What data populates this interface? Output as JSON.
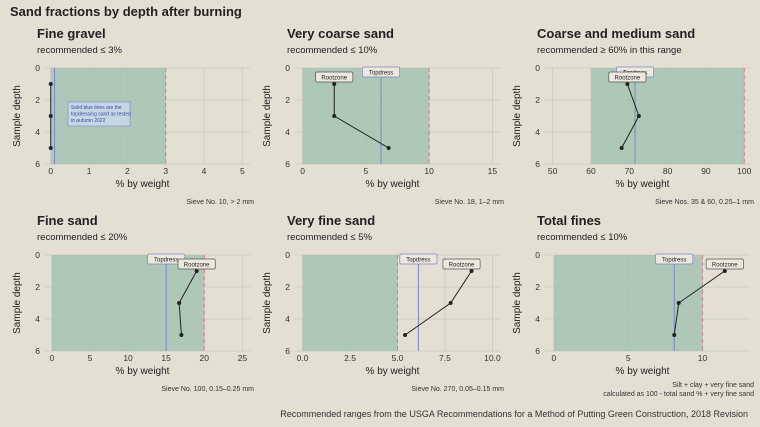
{
  "title": "Sand fractions by depth after burning",
  "footer": "Recommended ranges from the USGA Recommendations for a Method of Putting Green Construction, 2018 Revision",
  "colors": {
    "background": "#e3dfd3",
    "recommended_fill": "#a4c3b2",
    "limit_line": "#d97a8b",
    "topdress_line": "#7b83d6",
    "rootzone_series": "#222222",
    "grid": "#c9c6bb"
  },
  "chart_data": [
    {
      "type": "line",
      "title": "Fine gravel",
      "subtitle": "recommended ≤ 3%",
      "caption": [
        "Sieve No. 10, > 2 mm"
      ],
      "xlabel": "% by weight",
      "ylabel": "Sample depth",
      "xlim": [
        -0.15,
        5.2
      ],
      "xticks": [
        0,
        1,
        2,
        3,
        4,
        5
      ],
      "xtick_labels": [
        "0",
        "1",
        "2",
        "3",
        "4",
        "5"
      ],
      "ylim": [
        0,
        6
      ],
      "yticks": [
        0,
        2,
        4,
        6
      ],
      "recommended_range": [
        0,
        3
      ],
      "topdress_value": 0.1,
      "topdress_label": "",
      "rootzone_label": "",
      "note": "Solid blue lines are the topdressing sand as tested in autumn 2022",
      "series": [
        {
          "x": [
            0.0,
            0.0,
            0.0
          ],
          "y": [
            1,
            3,
            5
          ]
        }
      ]
    },
    {
      "type": "line",
      "title": "Very coarse sand",
      "subtitle": "recommended ≤ 10%",
      "caption": [
        "Sieve No. 18, 1–2 mm"
      ],
      "xlabel": "% by weight",
      "ylabel": "Sample depth",
      "xlim": [
        -0.6,
        15.6
      ],
      "xticks": [
        0,
        5,
        10,
        15
      ],
      "xtick_labels": [
        "0",
        "5",
        "10",
        "15"
      ],
      "ylim": [
        0,
        6
      ],
      "yticks": [
        0,
        2,
        4,
        6
      ],
      "recommended_range": [
        0,
        10
      ],
      "topdress_value": 6.2,
      "topdress_label": "Topdress",
      "rootzone_label": "Rootzone",
      "note": "",
      "series": [
        {
          "x": [
            2.5,
            2.5,
            6.8
          ],
          "y": [
            1,
            3,
            5
          ]
        }
      ]
    },
    {
      "type": "line",
      "title": "Coarse and medium sand",
      "subtitle": "recommended ≥ 60% in this range",
      "caption": [
        "Sieve Nos. 35 & 60, 0.25–1 mm"
      ],
      "xlabel": "% by weight",
      "ylabel": "Sample depth",
      "xlim": [
        48,
        101.5
      ],
      "xticks": [
        50,
        60,
        70,
        80,
        90,
        100
      ],
      "xtick_labels": [
        "50",
        "60",
        "70",
        "80",
        "90",
        "100"
      ],
      "ylim": [
        0,
        6
      ],
      "yticks": [
        0,
        2,
        4,
        6
      ],
      "recommended_range": [
        60,
        100
      ],
      "topdress_value": 71.5,
      "topdress_label": "Topdress",
      "rootzone_label": "Rootzone",
      "note": "",
      "series": [
        {
          "x": [
            69.5,
            72.5,
            68
          ],
          "y": [
            1,
            3,
            5
          ]
        }
      ]
    },
    {
      "type": "line",
      "title": "Fine sand",
      "subtitle": "recommended ≤ 20%",
      "caption": [
        "Sieve No. 100, 0.15–0.25 mm"
      ],
      "xlabel": "% by weight",
      "ylabel": "Sample depth",
      "xlim": [
        -0.9,
        26
      ],
      "xticks": [
        0,
        5,
        10,
        15,
        20,
        25
      ],
      "xtick_labels": [
        "0",
        "5",
        "10",
        "15",
        "20",
        "25"
      ],
      "ylim": [
        0,
        6
      ],
      "yticks": [
        0,
        2,
        4,
        6
      ],
      "recommended_range": [
        0,
        20
      ],
      "topdress_value": 15,
      "topdress_label": "Topdress",
      "rootzone_label": "Rootzone",
      "note": "",
      "series": [
        {
          "x": [
            19,
            16.7,
            17
          ],
          "y": [
            1,
            3,
            5
          ]
        }
      ]
    },
    {
      "type": "line",
      "title": "Very fine sand",
      "subtitle": "recommended ≤ 5%",
      "caption": [
        "Sieve No. 270, 0.05–0.15 mm"
      ],
      "xlabel": "% by weight",
      "ylabel": "Sample depth",
      "xlim": [
        -0.4,
        10.4
      ],
      "xticks": [
        0,
        2.5,
        5,
        7.5,
        10
      ],
      "xtick_labels": [
        "0.0",
        "2.5",
        "5.0",
        "7.5",
        "10.0"
      ],
      "ylim": [
        0,
        6
      ],
      "yticks": [
        0,
        2,
        4,
        6
      ],
      "recommended_range": [
        0,
        5
      ],
      "topdress_value": 6.1,
      "topdress_label": "Topdress",
      "rootzone_label": "Rootzone",
      "note": "",
      "series": [
        {
          "x": [
            8.9,
            7.8,
            5.4
          ],
          "y": [
            1,
            3,
            5
          ]
        }
      ]
    },
    {
      "type": "line",
      "title": "Total fines",
      "subtitle": "recommended ≤ 10%",
      "caption": [
        "Silt + clay + very fine sand",
        "calculated as 100 - total sand % + very fine sand"
      ],
      "xlabel": "% by weight",
      "ylabel": "Sample depth",
      "xlim": [
        -0.6,
        13.2
      ],
      "xticks": [
        0,
        5,
        10
      ],
      "xtick_labels": [
        "0",
        "5",
        "10"
      ],
      "ylim": [
        0,
        6
      ],
      "yticks": [
        0,
        2,
        4,
        6
      ],
      "recommended_range": [
        0,
        10
      ],
      "topdress_value": 8.1,
      "topdress_label": "Topdress",
      "rootzone_label": "Rootzone",
      "note": "",
      "series": [
        {
          "x": [
            11.5,
            8.4,
            8.1
          ],
          "y": [
            1,
            3,
            5
          ]
        }
      ]
    }
  ]
}
